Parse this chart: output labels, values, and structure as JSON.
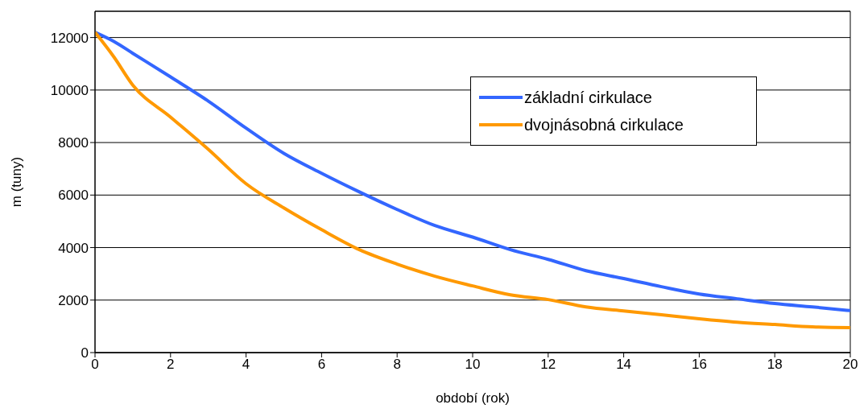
{
  "chart_data": {
    "type": "line",
    "xlabel": "období (rok)",
    "ylabel": "m (tuny)",
    "x": [
      0,
      0.5,
      1,
      2,
      3,
      4,
      5,
      6,
      7,
      8,
      9,
      10,
      11,
      12,
      13,
      14,
      15,
      16,
      17,
      18,
      19,
      20
    ],
    "series": [
      {
        "name": "základní cirkulace",
        "color": "#3366ff",
        "values": [
          12200,
          11850,
          11400,
          10500,
          9580,
          8550,
          7590,
          6830,
          6120,
          5450,
          4840,
          4400,
          3920,
          3550,
          3120,
          2820,
          2510,
          2230,
          2050,
          1870,
          1740,
          1600
        ]
      },
      {
        "name": "dvojnásobná cirkulace",
        "color": "#ff9900",
        "values": [
          12200,
          11260,
          10190,
          8970,
          7740,
          6430,
          5510,
          4680,
          3920,
          3370,
          2910,
          2540,
          2200,
          2020,
          1740,
          1590,
          1440,
          1290,
          1160,
          1070,
          980,
          950
        ]
      }
    ],
    "xlim": [
      0,
      20
    ],
    "xticks": [
      0,
      2,
      4,
      6,
      8,
      10,
      12,
      14,
      16,
      18,
      20
    ],
    "ylim": [
      0,
      13000
    ],
    "yticks": [
      0,
      2000,
      4000,
      6000,
      8000,
      10000,
      12000
    ],
    "grid": "y",
    "legend": "top right",
    "marker": "none",
    "line_style": "solid"
  }
}
